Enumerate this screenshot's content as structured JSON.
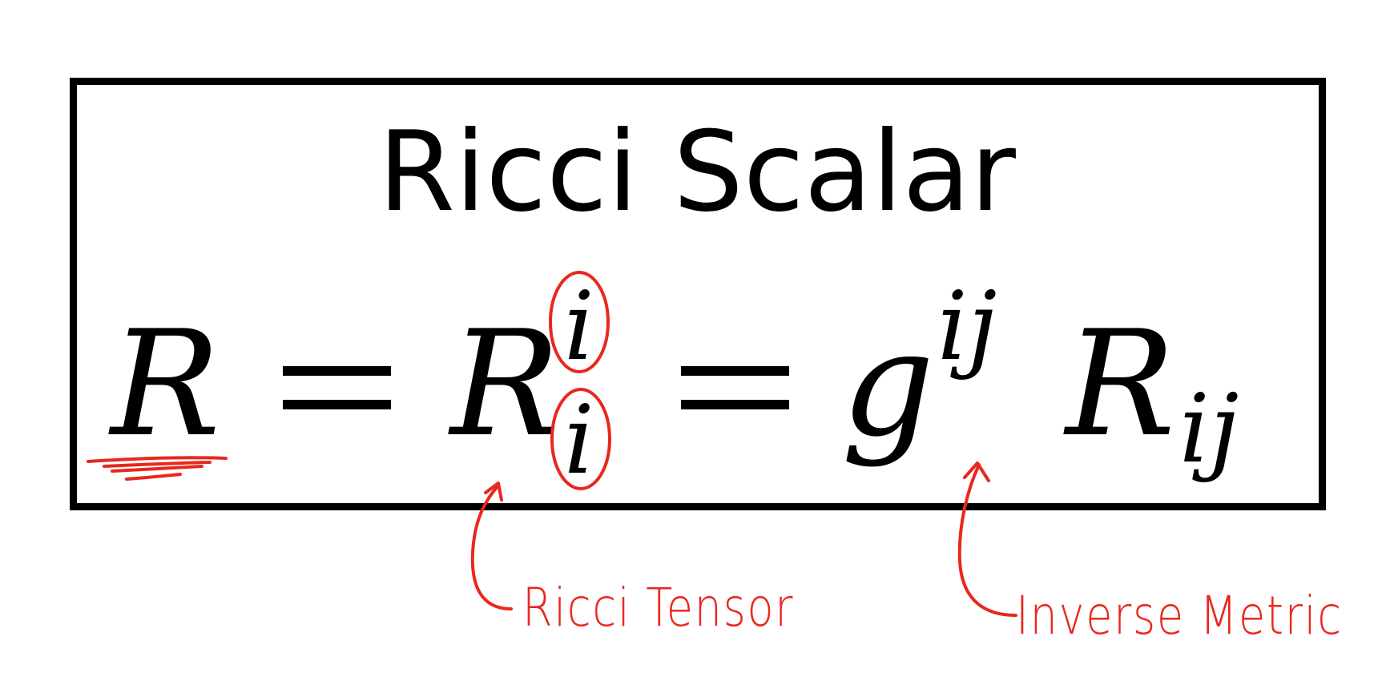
{
  "slide": {
    "title": "Ricci Scalar"
  },
  "equation": {
    "lhs": "R",
    "middle_base": "R",
    "middle_upper_index": "i",
    "middle_lower_index": "i",
    "metric_base": "g",
    "metric_upper_indices": "ij",
    "rhs_base": "R",
    "rhs_lower_indices": "ij"
  },
  "annotations": {
    "ricci_tensor_label": "Ricci Tensor",
    "inverse_metric_label": "Inverse Metric",
    "ink_color": "#e8281e"
  }
}
